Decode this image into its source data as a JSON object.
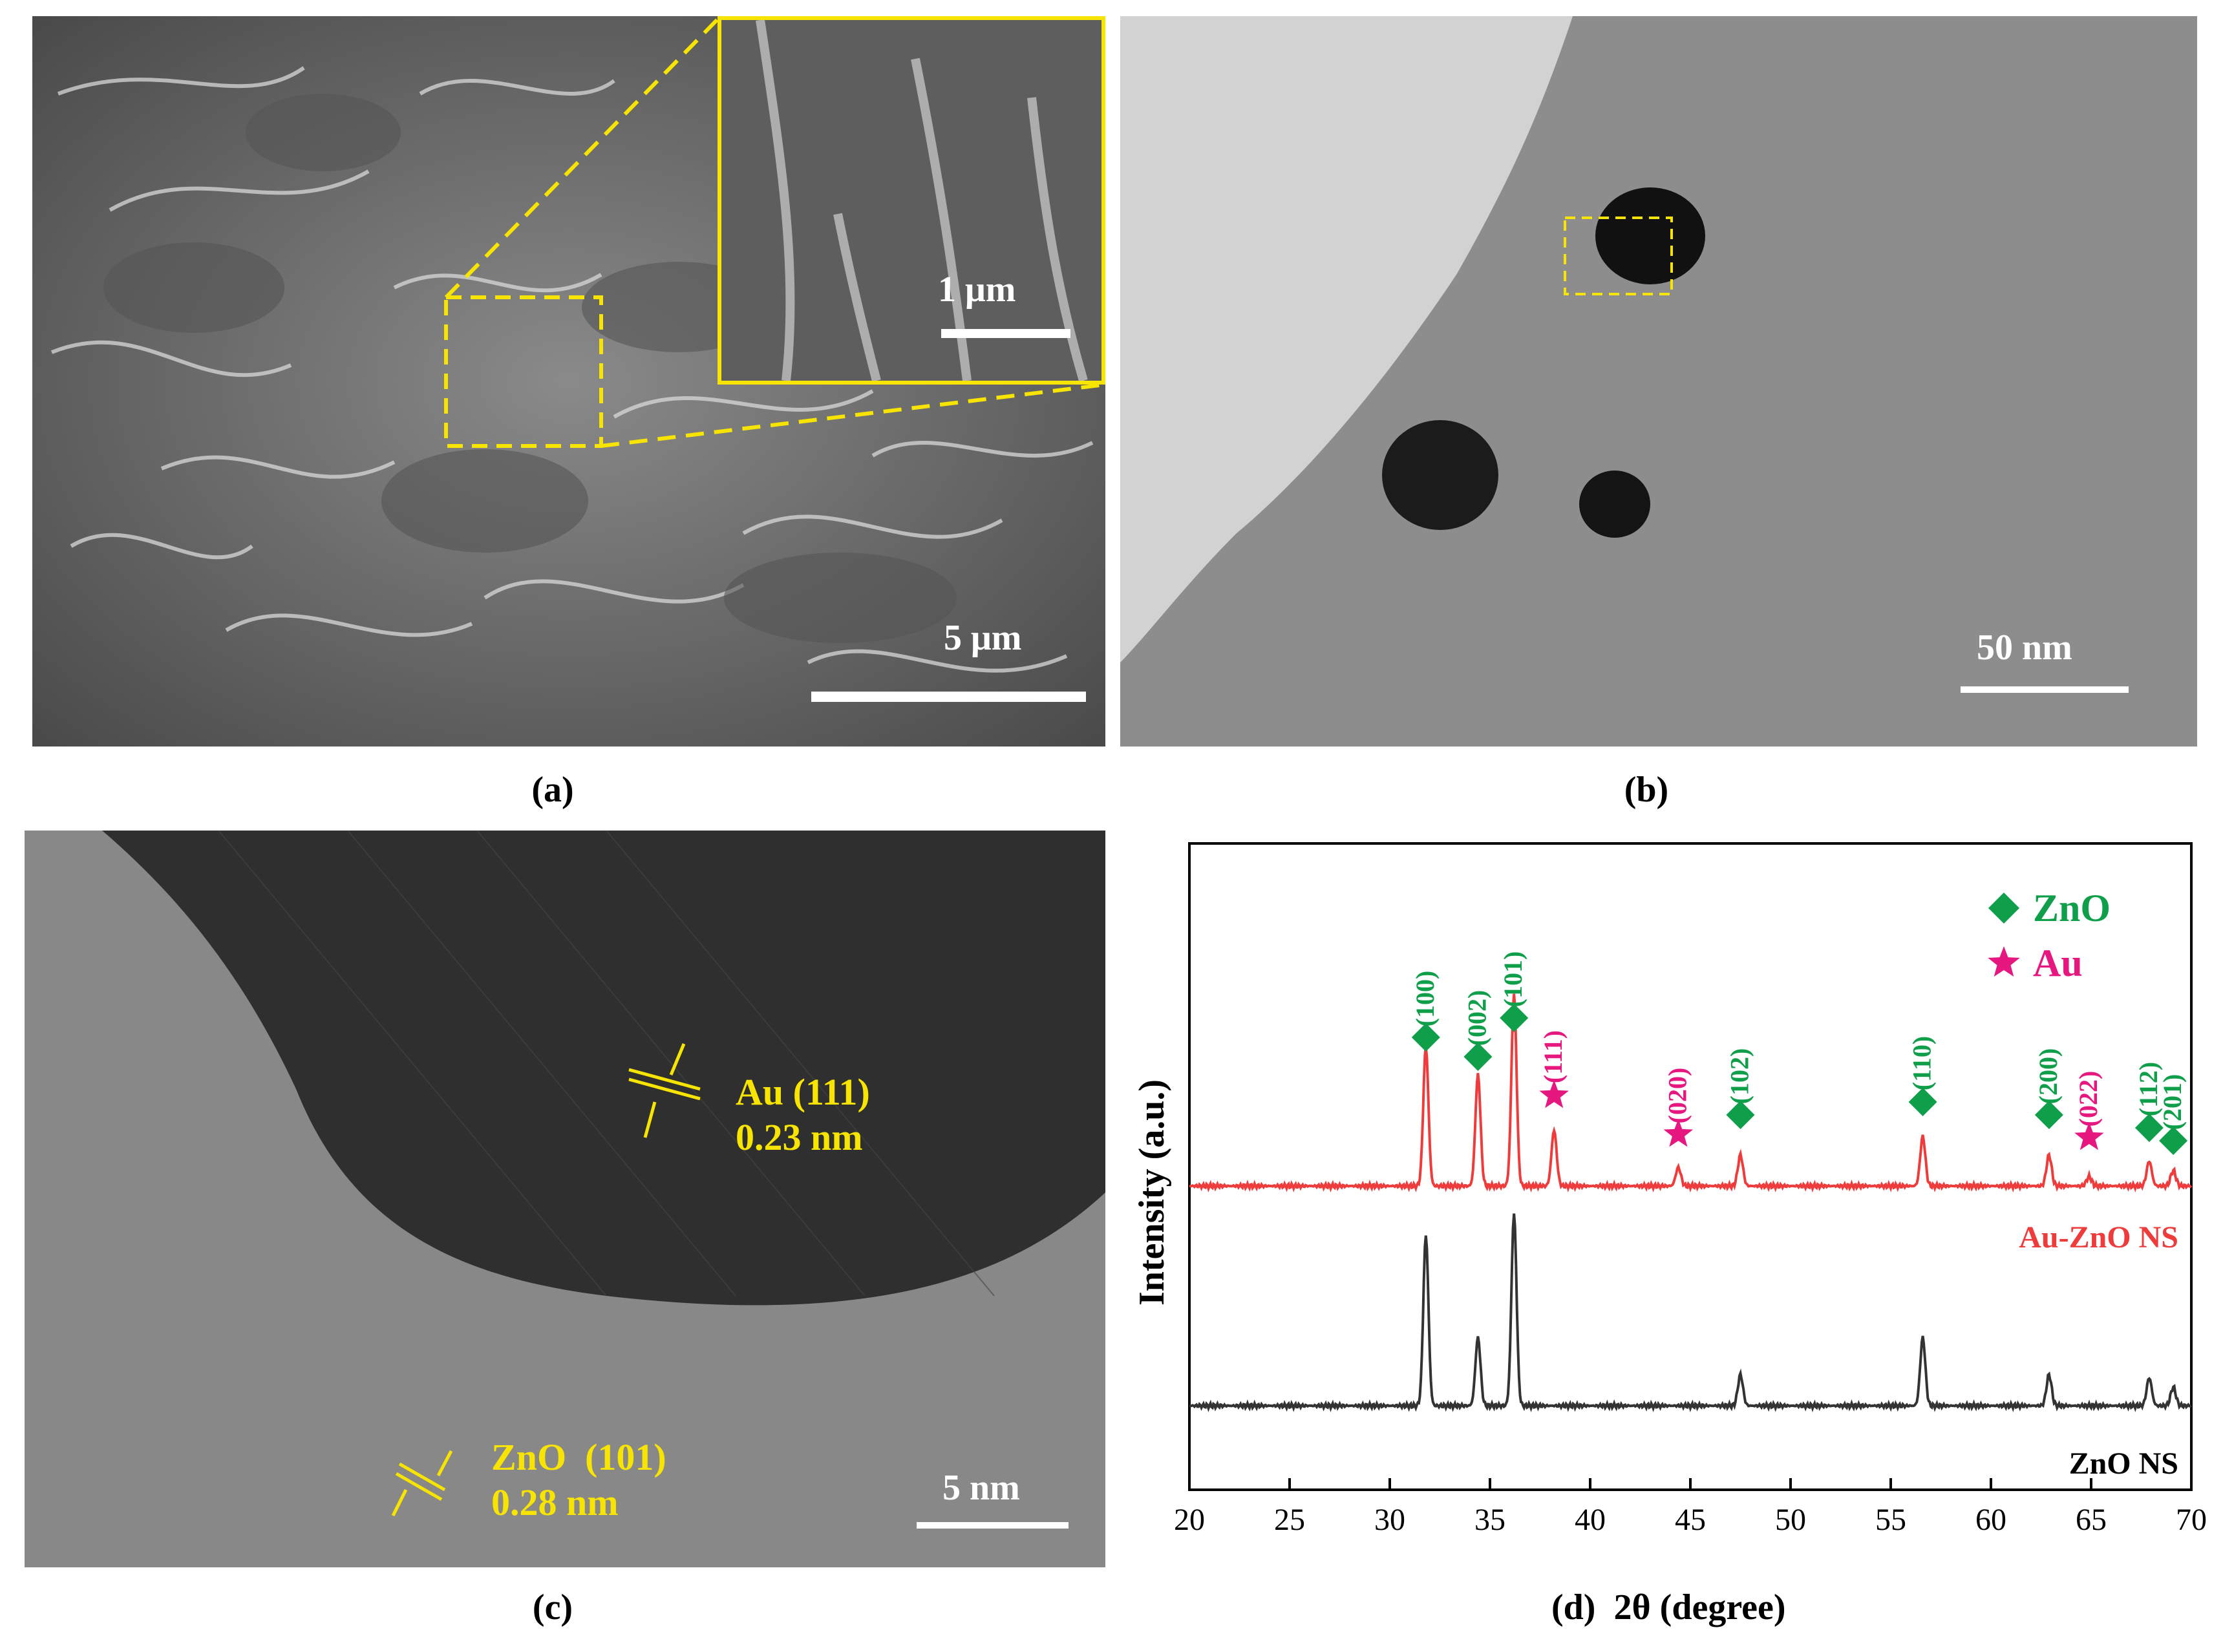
{
  "panels": {
    "a": {
      "caption": "(a)",
      "scale_main": "5 μm",
      "scale_inset": "1 μm"
    },
    "b": {
      "caption": "(b)",
      "scale": "50 nm"
    },
    "c": {
      "caption": "(c)",
      "scale": "5 nm",
      "au_label_1": "Au (111)",
      "au_label_2": "0.23 nm",
      "zno_label_1": "ZnO  (101)",
      "zno_label_2": "0.28 nm"
    },
    "d": {
      "caption": "(d)  2θ (degree)"
    }
  },
  "colors": {
    "annotation_yellow": "#f7e400",
    "zno_green": "#0f9e4a",
    "au_pink": "#e6187f",
    "au_zno_line": "#ee3b3b",
    "zno_line": "#333333"
  },
  "chart_data": {
    "type": "line",
    "xlabel": "2θ (degree)",
    "ylabel": "Intensity (a.u.)",
    "xlim": [
      20,
      70
    ],
    "x_ticks": [
      "20",
      "25",
      "30",
      "35",
      "40",
      "45",
      "50",
      "55",
      "60",
      "65",
      "70"
    ],
    "legend": [
      {
        "symbol": "diamond",
        "label": "ZnO",
        "color": "#0f9e4a"
      },
      {
        "symbol": "star",
        "label": "Au",
        "color": "#e6187f"
      }
    ],
    "legend_position": "top-right",
    "series": [
      {
        "name": "Au-ZnO NS",
        "color": "#ee3b3b",
        "peaks": [
          {
            "x": 31.8,
            "height": 0.45
          },
          {
            "x": 34.4,
            "height": 0.36
          },
          {
            "x": 36.2,
            "height": 0.62
          },
          {
            "x": 38.2,
            "height": 0.18
          },
          {
            "x": 44.4,
            "height": 0.06
          },
          {
            "x": 47.5,
            "height": 0.1
          },
          {
            "x": 56.6,
            "height": 0.16
          },
          {
            "x": 62.9,
            "height": 0.1
          },
          {
            "x": 64.9,
            "height": 0.03
          },
          {
            "x": 67.9,
            "height": 0.08
          },
          {
            "x": 69.1,
            "height": 0.05
          }
        ]
      },
      {
        "name": "ZnO NS",
        "color": "#333333",
        "peaks": [
          {
            "x": 31.8,
            "height": 0.55
          },
          {
            "x": 34.4,
            "height": 0.22
          },
          {
            "x": 36.2,
            "height": 0.62
          },
          {
            "x": 47.5,
            "height": 0.1
          },
          {
            "x": 56.6,
            "height": 0.22
          },
          {
            "x": 62.9,
            "height": 0.1
          },
          {
            "x": 67.9,
            "height": 0.09
          },
          {
            "x": 69.1,
            "height": 0.06
          }
        ]
      }
    ],
    "annotations": [
      {
        "label": "(100)",
        "x": 31.8,
        "phase": "ZnO"
      },
      {
        "label": "(002)",
        "x": 34.4,
        "phase": "ZnO"
      },
      {
        "label": "(101)",
        "x": 36.2,
        "phase": "ZnO"
      },
      {
        "label": "(111)",
        "x": 38.2,
        "phase": "Au"
      },
      {
        "label": "(020)",
        "x": 44.4,
        "phase": "Au"
      },
      {
        "label": "(102)",
        "x": 47.5,
        "phase": "ZnO"
      },
      {
        "label": "(110)",
        "x": 56.6,
        "phase": "ZnO"
      },
      {
        "label": "(200)",
        "x": 62.9,
        "phase": "ZnO"
      },
      {
        "label": "(022)",
        "x": 64.9,
        "phase": "Au"
      },
      {
        "label": "(112)",
        "x": 67.9,
        "phase": "ZnO"
      },
      {
        "label": "(201)",
        "x": 69.1,
        "phase": "ZnO"
      }
    ]
  }
}
